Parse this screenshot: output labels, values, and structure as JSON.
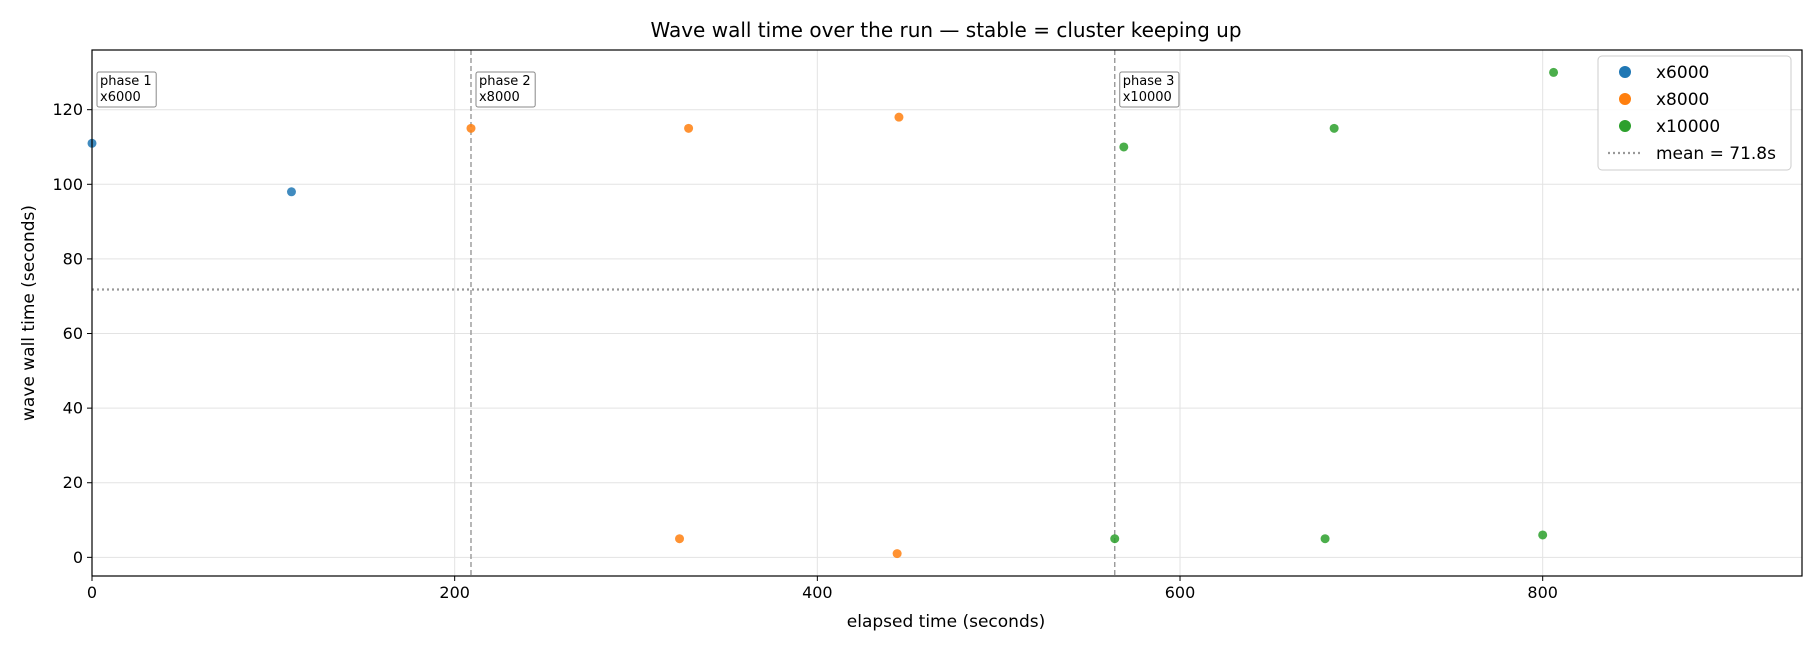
{
  "chart_data": {
    "type": "scatter",
    "title": "Wave wall time over the run — stable = cluster keeping up",
    "xlabel": "elapsed time (seconds)",
    "ylabel": "wave wall time (seconds)",
    "xlim": [
      0,
      943
    ],
    "ylim": [
      -5,
      136
    ],
    "xticks": [
      0,
      200,
      400,
      600,
      800
    ],
    "yticks": [
      0,
      20,
      40,
      60,
      80,
      100,
      120
    ],
    "grid": true,
    "legend_position": "top-right",
    "series": [
      {
        "name": "x6000",
        "color": "#1f77b4",
        "points": [
          [
            0,
            111
          ],
          [
            110,
            98
          ]
        ]
      },
      {
        "name": "x8000",
        "color": "#ff7f0e",
        "points": [
          [
            209,
            115
          ],
          [
            329,
            115
          ],
          [
            445,
            118
          ],
          [
            324,
            5
          ],
          [
            444,
            1
          ]
        ]
      },
      {
        "name": "x10000",
        "color": "#2ca02c",
        "points": [
          [
            569,
            110
          ],
          [
            685,
            115
          ],
          [
            806,
            130
          ],
          [
            564,
            5
          ],
          [
            680,
            5
          ],
          [
            800,
            6
          ]
        ]
      }
    ],
    "mean": {
      "label": "mean = 71.8s",
      "value": 71.8,
      "color": "#999999"
    },
    "phases": [
      {
        "x": 0,
        "label": [
          "phase 1",
          "x6000"
        ],
        "boundary": false
      },
      {
        "x": 209,
        "label": [
          "phase 2",
          "x8000"
        ],
        "boundary": true
      },
      {
        "x": 564,
        "label": [
          "phase 3",
          "x10000"
        ],
        "boundary": true
      }
    ]
  }
}
